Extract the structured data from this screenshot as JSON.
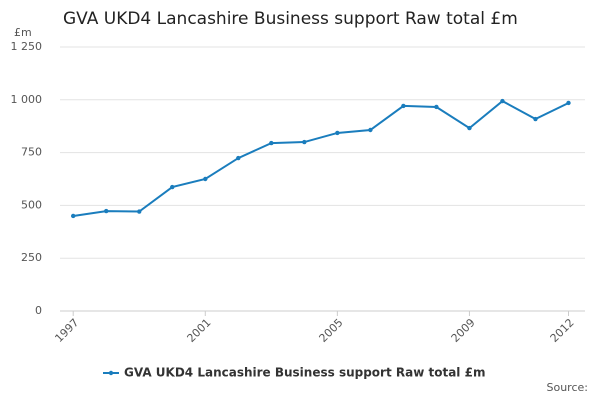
{
  "chart_data": {
    "type": "line",
    "title": "GVA UKD4 Lancashire Business support Raw total £m",
    "y_unit": "£m",
    "source": "Source:",
    "x": [
      1997,
      1998,
      1999,
      2000,
      2001,
      2002,
      2003,
      2004,
      2005,
      2006,
      2007,
      2008,
      2009,
      2010,
      2011,
      2012
    ],
    "series": [
      {
        "name": "GVA UKD4 Lancashire Business support Raw total £m",
        "color": "#1a7dbd",
        "values": [
          450,
          473,
          471,
          587,
          625,
          724,
          795,
          800,
          843,
          857,
          971,
          966,
          866,
          994,
          909,
          985
        ]
      }
    ],
    "xlim": [
      1996.6,
      2012.5
    ],
    "xticks": [
      1997,
      2001,
      2005,
      2009,
      2012
    ],
    "ylim": [
      0,
      1250
    ],
    "yticks": [
      0,
      250,
      500,
      750,
      {
        "value": 1000,
        "label": "1 000"
      },
      {
        "value": 1250,
        "label": "1 250"
      }
    ],
    "grid": true,
    "legend": "bottom"
  }
}
